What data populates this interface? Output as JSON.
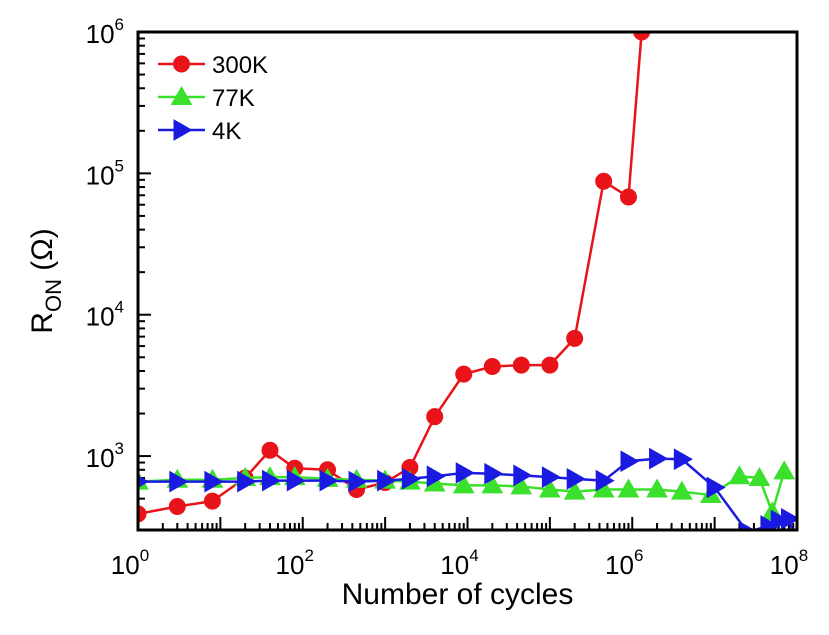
{
  "chart_data": {
    "type": "line",
    "xscale": "log",
    "yscale": "log",
    "xlim": [
      1,
      100000000
    ],
    "ylim": [
      300,
      1000000
    ],
    "xlabel": "Number of cycles",
    "ylabel": {
      "base": "R",
      "sub": "ON",
      "unit": " (Ω)"
    },
    "xticks": [
      {
        "base": "10",
        "exp": "0"
      },
      {
        "base": "10",
        "exp": "2"
      },
      {
        "base": "10",
        "exp": "4"
      },
      {
        "base": "10",
        "exp": "6"
      },
      {
        "base": "10",
        "exp": "8"
      }
    ],
    "yticks": [
      {
        "base": "10",
        "exp": "3"
      },
      {
        "base": "10",
        "exp": "4"
      },
      {
        "base": "10",
        "exp": "5"
      },
      {
        "base": "10",
        "exp": "6"
      }
    ],
    "legend": {
      "position": "top-left"
    },
    "series": [
      {
        "name": "300K",
        "color": "#e8141a",
        "marker": "circle",
        "x": [
          1,
          3,
          8,
          20,
          40,
          80,
          200,
          450,
          1000,
          2000,
          4000,
          9000,
          20000,
          45000,
          100000,
          200000,
          450000,
          900000,
          1300000
        ],
        "y": [
          390,
          440,
          480,
          700,
          1100,
          820,
          800,
          580,
          650,
          830,
          1900,
          3800,
          4300,
          4400,
          4400,
          6800,
          88000,
          68000,
          1000000
        ]
      },
      {
        "name": "77K",
        "color": "#3ae02c",
        "marker": "triangle-up",
        "x": [
          1,
          3,
          8,
          20,
          40,
          80,
          200,
          450,
          1000,
          2000,
          4000,
          9000,
          20000,
          45000,
          100000,
          200000,
          450000,
          900000,
          2000000,
          4000000,
          9000000,
          20000000,
          35000000,
          50000000,
          70000000
        ],
        "y": [
          660,
          680,
          680,
          700,
          710,
          710,
          690,
          680,
          670,
          660,
          640,
          620,
          620,
          610,
          580,
          560,
          580,
          580,
          580,
          560,
          530,
          720,
          700,
          400,
          780
        ]
      },
      {
        "name": "4K",
        "color": "#1a1ae0",
        "marker": "triangle-right",
        "x": [
          1,
          3,
          8,
          20,
          40,
          80,
          200,
          450,
          1000,
          2000,
          4000,
          9000,
          20000,
          45000,
          100000,
          200000,
          450000,
          900000,
          2000000,
          4000000,
          10000000,
          25000000,
          45000000,
          60000000,
          80000000,
          100000000
        ],
        "y": [
          660,
          660,
          660,
          660,
          670,
          670,
          670,
          660,
          670,
          690,
          720,
          760,
          750,
          730,
          710,
          690,
          670,
          920,
          960,
          950,
          600,
          290,
          320,
          350,
          360,
          230
        ]
      }
    ]
  }
}
